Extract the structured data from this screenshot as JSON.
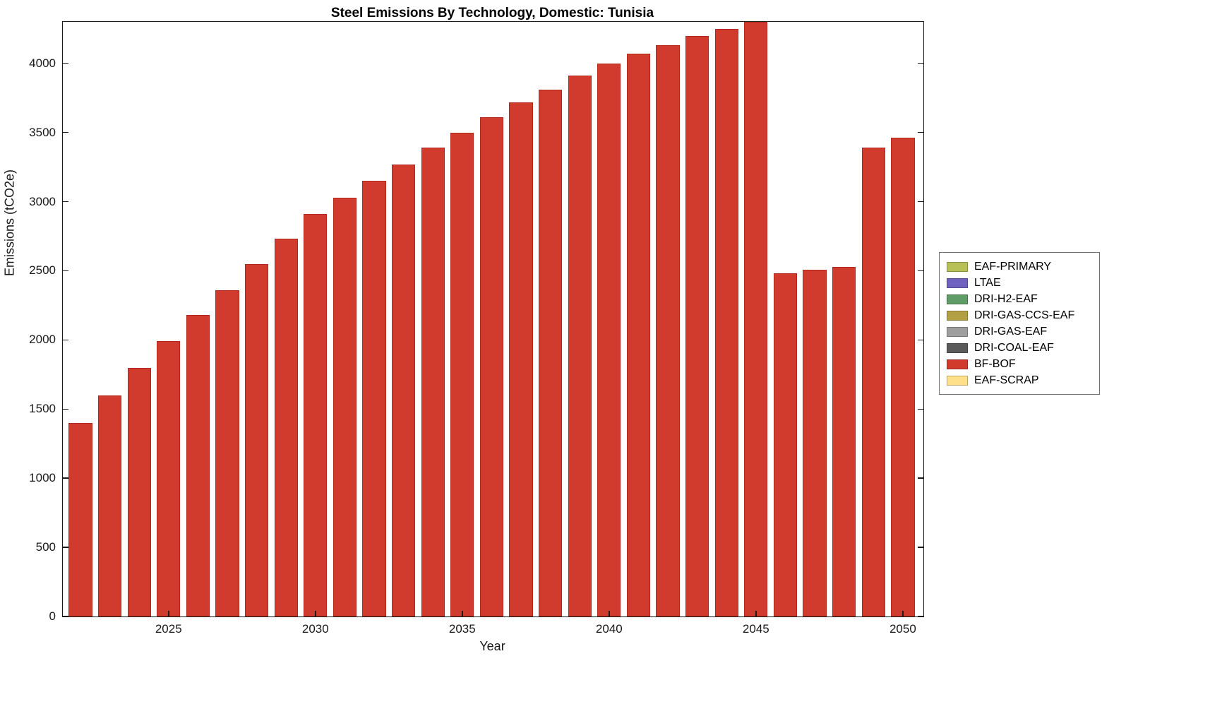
{
  "title": "Steel Emissions By Technology, Domestic: Tunisia",
  "xlabel": "Year",
  "ylabel": "Emissions (tCO2e)",
  "chart_data": {
    "type": "bar",
    "title": "Steel Emissions By Technology, Domestic: Tunisia",
    "xlabel": "Year",
    "ylabel": "Emissions (tCO2e)",
    "xlim": [
      2021.4,
      2050.7
    ],
    "ylim": [
      0,
      4300
    ],
    "grid": false,
    "legend_position": "right-outside",
    "bar_color": "#d13b2e",
    "categories": [
      2022,
      2023,
      2024,
      2025,
      2026,
      2027,
      2028,
      2029,
      2030,
      2031,
      2032,
      2033,
      2034,
      2035,
      2036,
      2037,
      2038,
      2039,
      2040,
      2041,
      2042,
      2043,
      2044,
      2045,
      2046,
      2047,
      2048,
      2049,
      2050
    ],
    "series": [
      {
        "name": "BF-BOF",
        "color": "#d13b2e",
        "values": [
          1400,
          1600,
          1800,
          1990,
          2180,
          2360,
          2550,
          2730,
          2910,
          3030,
          3150,
          3270,
          3390,
          3500,
          3610,
          3720,
          3810,
          3910,
          4000,
          4070,
          4130,
          4200,
          4250,
          4300,
          2480,
          2510,
          2530,
          3390,
          3460
        ]
      }
    ],
    "yticks": [
      0,
      500,
      1000,
      1500,
      2000,
      2500,
      3000,
      3500,
      4000
    ],
    "xticks": [
      2025,
      2030,
      2035,
      2040,
      2045,
      2050
    ],
    "legend": [
      {
        "label": "EAF-PRIMARY",
        "color": "#b8c156"
      },
      {
        "label": "LTAE",
        "color": "#6e61c0"
      },
      {
        "label": "DRI-H2-EAF",
        "color": "#5f9c68"
      },
      {
        "label": "DRI-GAS-CCS-EAF",
        "color": "#b3a042"
      },
      {
        "label": "DRI-GAS-EAF",
        "color": "#9e9e9e"
      },
      {
        "label": "DRI-COAL-EAF",
        "color": "#5a5a5a"
      },
      {
        "label": "BF-BOF",
        "color": "#d13b2e"
      },
      {
        "label": "EAF-SCRAP",
        "color": "#ffe08a"
      }
    ]
  }
}
